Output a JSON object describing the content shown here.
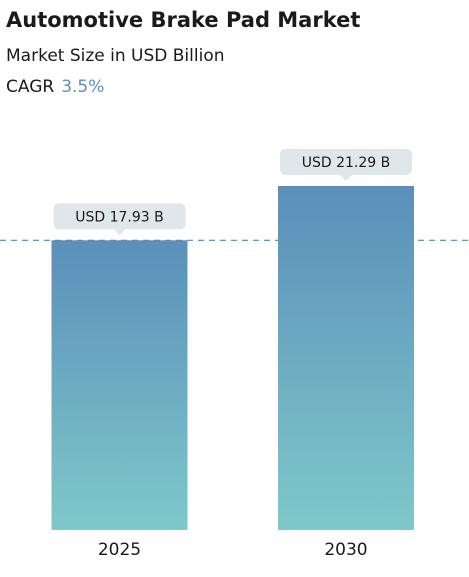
{
  "chart_data": {
    "type": "bar",
    "title": "Automotive Brake Pad Market",
    "subtitle": "Market Size in USD Billion",
    "cagr_label": "CAGR",
    "cagr": {
      "value": 3.5,
      "label": "3.5%"
    },
    "categories": [
      "2025",
      "2030"
    ],
    "values": [
      17.93,
      21.29
    ],
    "value_labels": [
      "USD 17.93 B",
      "USD 21.29 B"
    ],
    "color": "#5b8fbb"
  }
}
